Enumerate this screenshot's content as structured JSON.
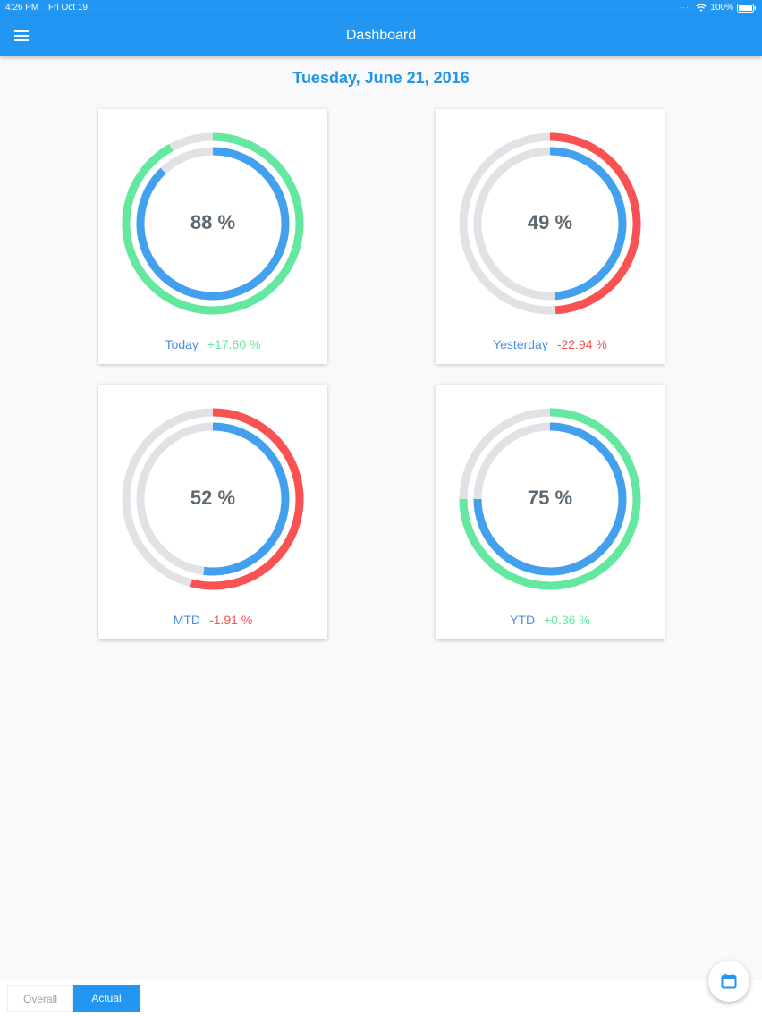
{
  "status_bar": {
    "time": "4:26 PM",
    "date": "Fri Oct 19",
    "battery": "100%"
  },
  "header": {
    "title": "Dashboard",
    "menu_icon": "hamburger-menu-icon"
  },
  "date_label": "Tuesday, June 21, 2016",
  "colors": {
    "primary": "#2196f3",
    "positive": "#64e8a0",
    "negative": "#fa5252",
    "inner": "#42a0ee",
    "track": "#e2e2e6"
  },
  "cards": [
    {
      "period": "Today",
      "percent_text": "88 %",
      "inner_value": 0.88,
      "change_text": "+17.60 %",
      "outer_value": 0.92,
      "trend": "positive"
    },
    {
      "period": "Yesterday",
      "percent_text": "49 %",
      "inner_value": 0.49,
      "change_text": "-22.94 %",
      "outer_value": 0.49,
      "trend": "negative"
    },
    {
      "period": "MTD",
      "percent_text": "52 %",
      "inner_value": 0.52,
      "change_text": "-1.91 %",
      "outer_value": 0.54,
      "trend": "negative"
    },
    {
      "period": "YTD",
      "percent_text": "75 %",
      "inner_value": 0.75,
      "change_text": "+0.36 %",
      "outer_value": 0.75,
      "trend": "positive"
    }
  ],
  "tabs": [
    {
      "label": "Overall",
      "active": false
    },
    {
      "label": "Actual",
      "active": true
    }
  ],
  "fab": {
    "icon": "calendar-icon"
  }
}
